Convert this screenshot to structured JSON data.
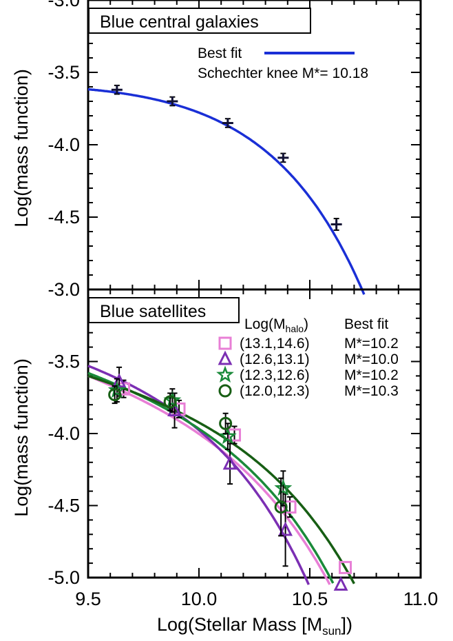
{
  "chart_data": [
    {
      "type": "line",
      "title": "Blue central galaxies",
      "ylabel": "Log(mass function)",
      "xlim": [
        9.5,
        11.0
      ],
      "ylim": [
        -5.0,
        -3.0
      ],
      "yticks": [
        -3.0,
        -3.5,
        -4.0,
        -4.5
      ],
      "ytick_labels": [
        "-3.0",
        "-3.5",
        "-4.0",
        "-4.5"
      ],
      "legend": {
        "fit_label": "Best fit",
        "knee_label": "Schechter knee M*= 10.18"
      },
      "series": [
        {
          "name": "Best fit",
          "color": "#1a2fd6",
          "kind": "curve",
          "mstar": 10.18,
          "alpha": -0.93,
          "anchor": {
            "x": 9.5,
            "y": -3.617
          }
        },
        {
          "kind": "points",
          "color": "#111133",
          "x": [
            9.63,
            9.88,
            10.13,
            10.38,
            10.62
          ],
          "y": [
            -3.62,
            -3.7,
            -3.85,
            -4.09,
            -4.55
          ],
          "yerr": [
            0.03,
            0.03,
            0.03,
            0.03,
            0.04
          ]
        }
      ]
    },
    {
      "type": "scatter",
      "title": "Blue satellites",
      "xlabel_main": "Log(Stellar Mass [M",
      "xlabel_sub": "sun",
      "xlabel_end": "])",
      "ylabel": "Log(mass function)",
      "xlim": [
        9.5,
        11.0
      ],
      "ylim": [
        -5.0,
        -3.0
      ],
      "xticks": [
        9.5,
        10.0,
        10.5,
        11.0
      ],
      "xtick_labels": [
        "9.5",
        "10.0",
        "10.5",
        "11.0"
      ],
      "yticks": [
        -3.0,
        -3.5,
        -4.0,
        -4.5,
        -5.0
      ],
      "ytick_labels": [
        "-3.0",
        "-3.5",
        "-4.0",
        "-4.5",
        "-5.0"
      ],
      "legend_header": {
        "halo_main": "Log(M",
        "halo_sub": "halo",
        "halo_end": ")",
        "fit": "Best fit"
      },
      "series": [
        {
          "name": "(13.1,14.6)",
          "fit": "M*=10.2",
          "marker": "square",
          "color": "#e87fd6",
          "mstar": 10.2,
          "alpha": -1.43,
          "anchor": {
            "x": 9.5,
            "y": -3.6
          },
          "x": [
            9.66,
            9.91,
            10.16,
            10.41,
            10.66
          ],
          "y": [
            -3.69,
            -3.83,
            -4.01,
            -4.51,
            -4.93
          ],
          "yerr": [
            0.06,
            0.06,
            0.06,
            0.07,
            0.0
          ]
        },
        {
          "name": "(12.6,13.1)",
          "fit": "M*=10.0",
          "marker": "triangle",
          "color": "#7b2fb3",
          "mstar": 10.0,
          "alpha": -1.3,
          "anchor": {
            "x": 9.5,
            "y": -3.53
          },
          "x": [
            9.64,
            9.89,
            10.14,
            10.39,
            10.64
          ],
          "y": [
            -3.64,
            -3.84,
            -4.21,
            -4.67,
            -5.05
          ],
          "yerr": [
            0.1,
            0.12,
            0.14,
            0.25,
            0.0
          ]
        },
        {
          "name": "(12.3,12.6)",
          "fit": "M*=10.2",
          "marker": "star",
          "color": "#1a8a3a",
          "mstar": 10.2,
          "alpha": -1.4,
          "anchor": {
            "x": 9.5,
            "y": -3.58
          },
          "x": [
            9.63,
            9.88,
            10.13,
            10.38
          ],
          "y": [
            -3.7,
            -3.77,
            -4.02,
            -4.38
          ],
          "yerr": [
            0.08,
            0.08,
            0.09,
            0.12
          ]
        },
        {
          "name": "(12.0,12.3)",
          "fit": "M*=10.3",
          "marker": "circle",
          "color": "#175e14",
          "mstar": 10.3,
          "alpha": -1.35,
          "anchor": {
            "x": 9.5,
            "y": -3.6
          },
          "x": [
            9.62,
            9.87,
            10.12,
            10.37
          ],
          "y": [
            -3.73,
            -3.78,
            -3.93,
            -4.51
          ],
          "yerr": [
            0.06,
            0.06,
            0.07,
            0.2
          ]
        }
      ]
    }
  ]
}
